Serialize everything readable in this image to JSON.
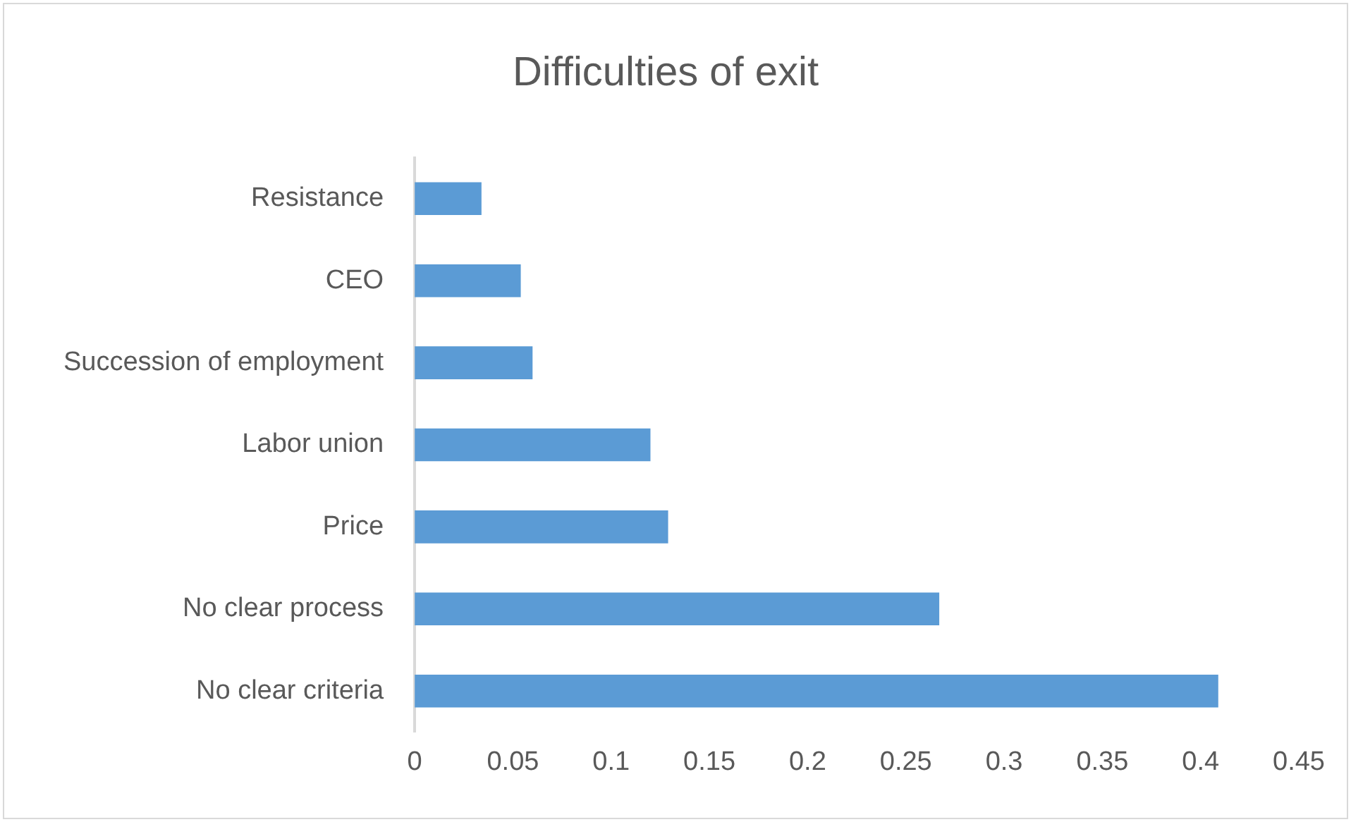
{
  "chart_data": {
    "type": "bar",
    "orientation": "horizontal",
    "title": "Difficulties of exit",
    "categories": [
      "Resistance",
      "CEO",
      "Succession of employment",
      "Labor union",
      "Price",
      "No clear process",
      "No clear criteria"
    ],
    "values": [
      0.034,
      0.054,
      0.06,
      0.12,
      0.129,
      0.267,
      0.409
    ],
    "color": "#5b9bd5",
    "xlim": [
      0,
      0.45
    ],
    "xticks": [
      0,
      0.05,
      0.1,
      0.15,
      0.2,
      0.25,
      0.3,
      0.35,
      0.4,
      0.45
    ],
    "grid": false,
    "legend": false
  }
}
